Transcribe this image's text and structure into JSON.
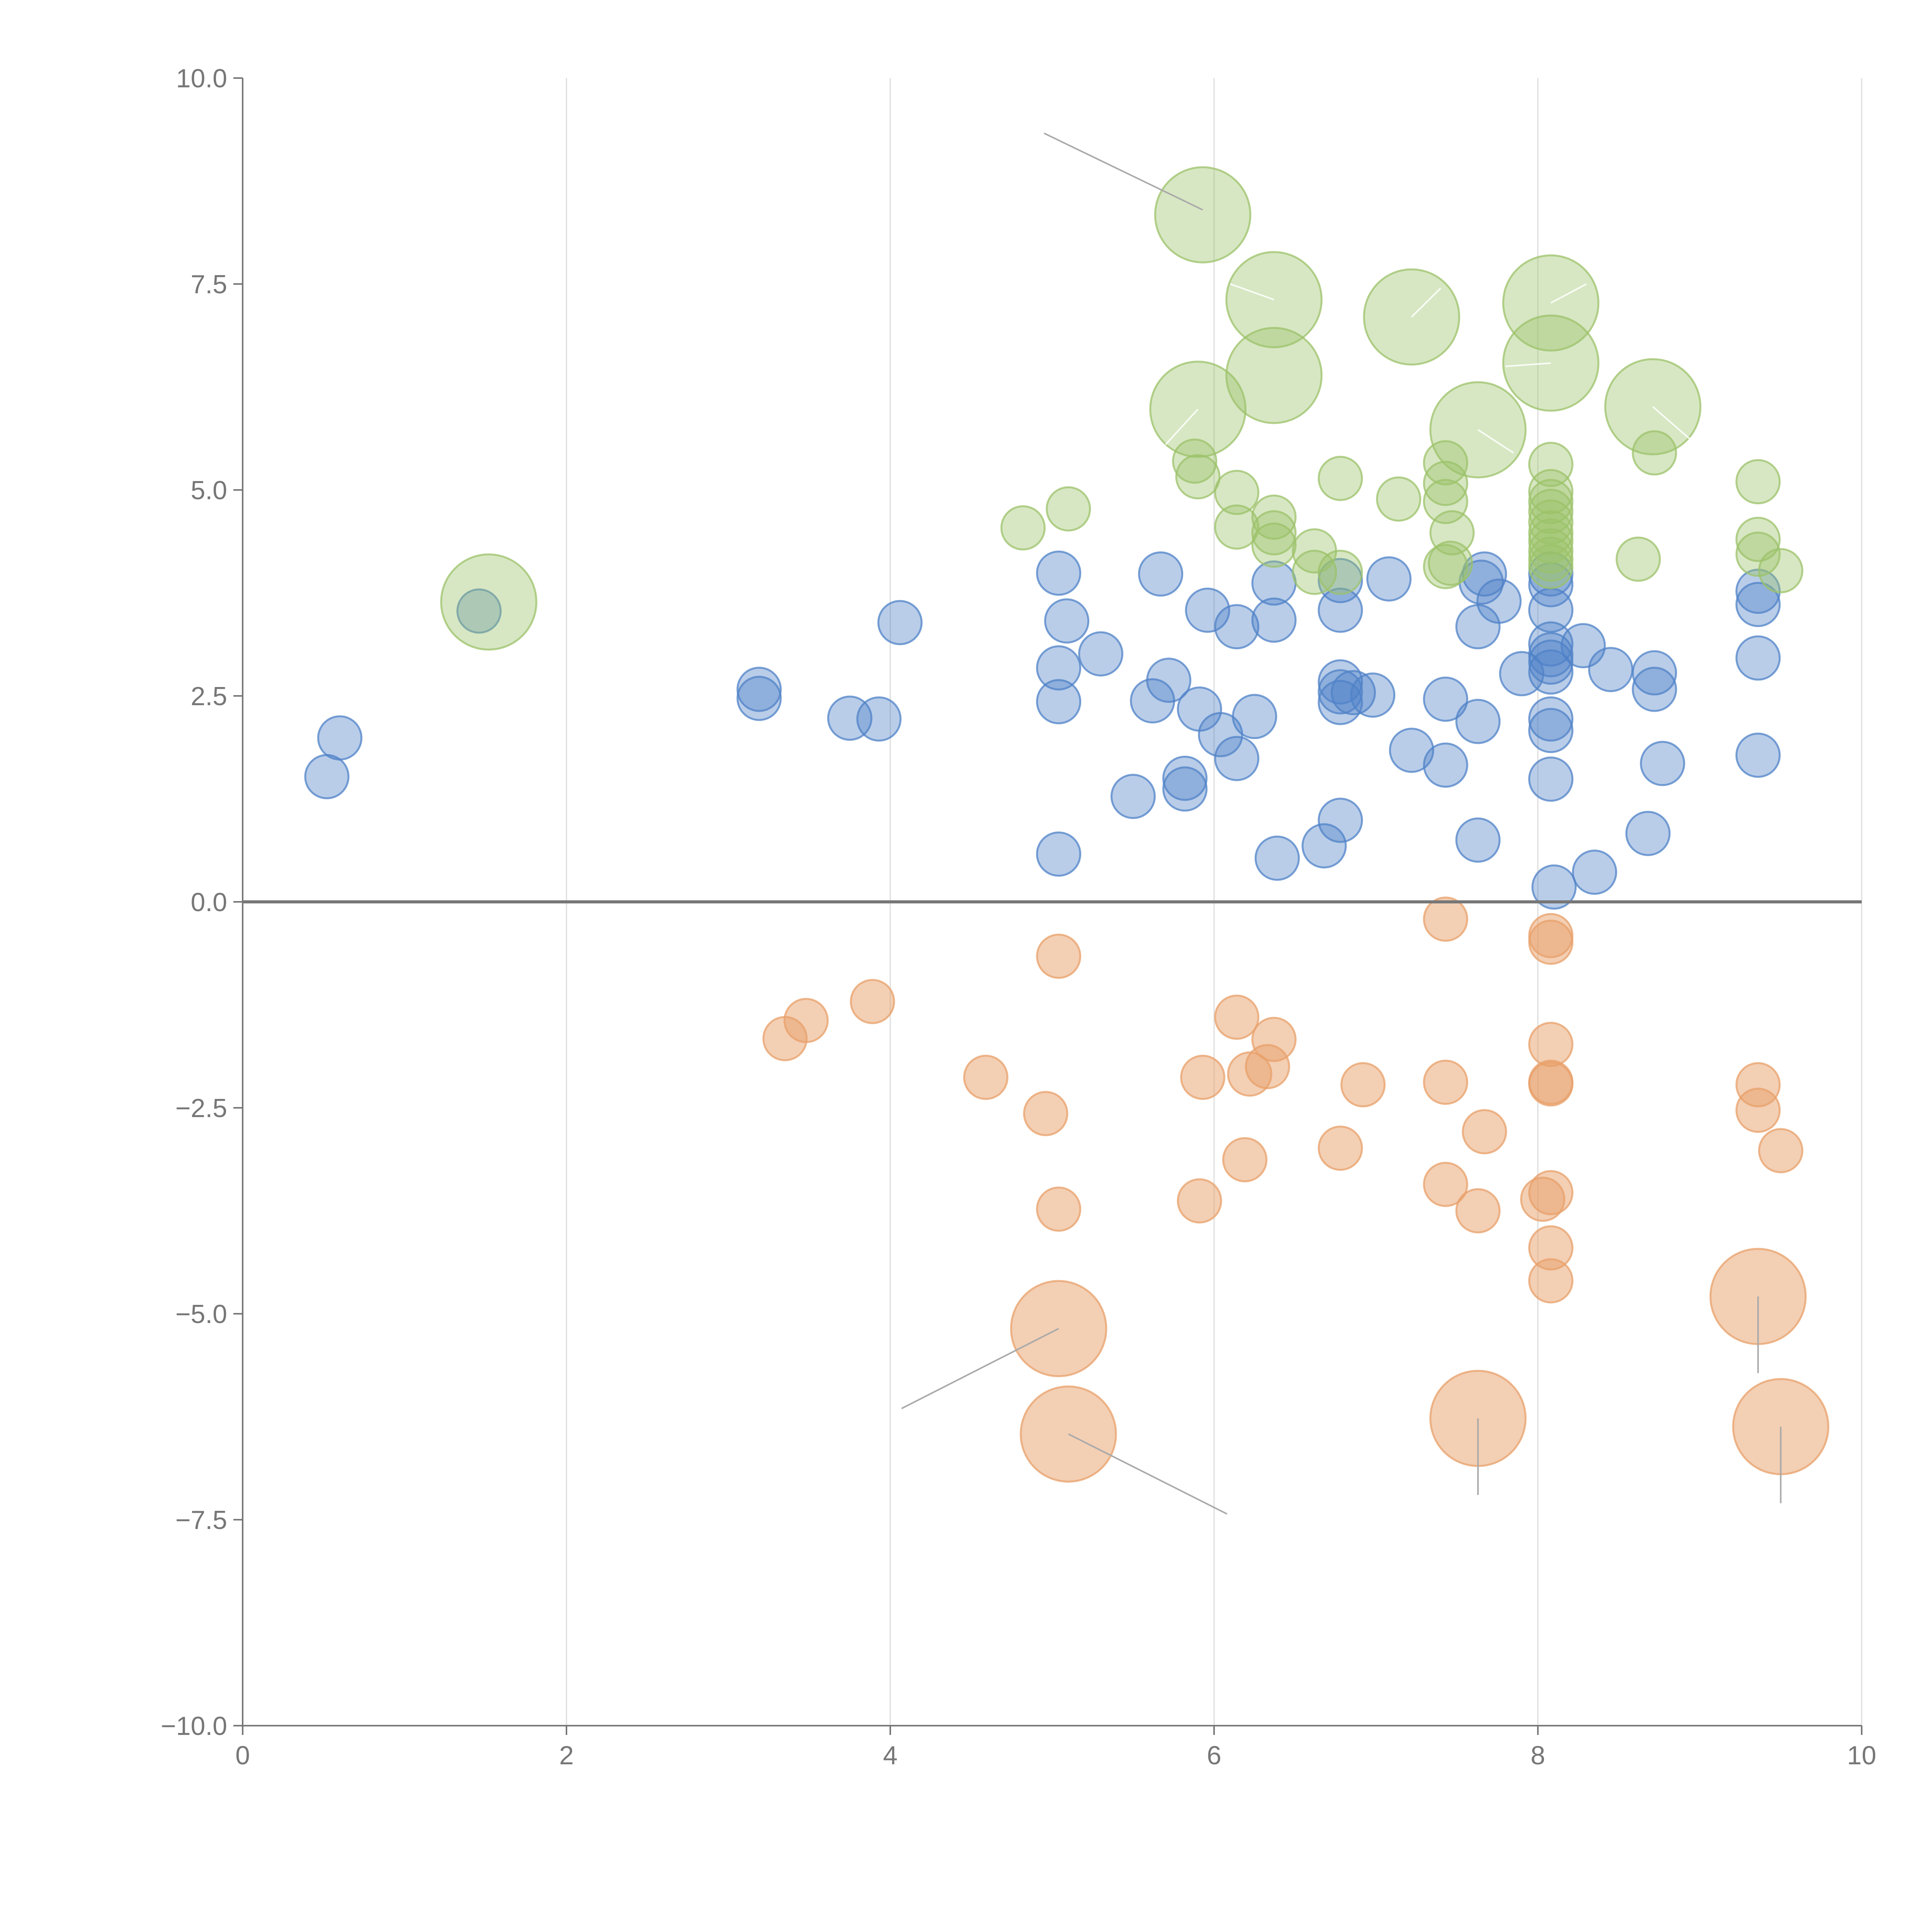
{
  "chart_data": {
    "type": "scatter",
    "title": "",
    "xlabel": "",
    "ylabel": "",
    "xlim": [
      0,
      10
    ],
    "ylim": [
      -10,
      10
    ],
    "grid": "vertical",
    "reference_line_y": 0,
    "x_ticks": [
      {
        "value": 0,
        "label": "0"
      },
      {
        "value": 2,
        "label": "2"
      },
      {
        "value": 4,
        "label": "4"
      },
      {
        "value": 6,
        "label": "6"
      },
      {
        "value": 8,
        "label": "8"
      },
      {
        "value": 10,
        "label": "10"
      }
    ],
    "y_ticks": [
      {
        "value": 10,
        "label": "10.0"
      },
      {
        "value": 7.5,
        "label": "7.5"
      },
      {
        "value": 5,
        "label": "5.0"
      },
      {
        "value": 2.5,
        "label": "2.5"
      },
      {
        "value": 0,
        "label": "0.0"
      },
      {
        "value": -2.5,
        "label": "−2.5"
      },
      {
        "value": -5,
        "label": "−5.0"
      },
      {
        "value": -7.5,
        "label": "−7.5"
      },
      {
        "value": -10,
        "label": "−10.0"
      }
    ],
    "series": [
      {
        "name": "blue",
        "color": "#4f81c7",
        "fill_opacity": 0.4,
        "size_unit": 1,
        "points": [
          [
            0.52,
            1.52
          ],
          [
            0.6,
            1.99
          ],
          [
            1.46,
            3.53
          ],
          [
            3.19,
            2.58
          ],
          [
            3.19,
            2.47
          ],
          [
            3.75,
            2.23
          ],
          [
            3.93,
            2.22
          ],
          [
            4.06,
            3.39
          ],
          [
            5.04,
            3.99
          ],
          [
            5.04,
            2.84
          ],
          [
            5.04,
            2.43
          ],
          [
            5.04,
            0.58
          ],
          [
            5.09,
            3.41
          ],
          [
            5.3,
            3.01
          ],
          [
            5.5,
            1.28
          ],
          [
            5.62,
            2.44
          ],
          [
            5.67,
            3.98
          ],
          [
            5.72,
            2.69
          ],
          [
            5.82,
            1.5
          ],
          [
            5.82,
            1.37
          ],
          [
            5.91,
            2.34
          ],
          [
            5.96,
            3.54
          ],
          [
            6.04,
            2.03
          ],
          [
            6.14,
            3.34
          ],
          [
            6.14,
            1.74
          ],
          [
            6.25,
            2.25
          ],
          [
            6.37,
            3.87
          ],
          [
            6.37,
            3.42
          ],
          [
            6.39,
            0.53
          ],
          [
            6.68,
            0.68
          ],
          [
            6.78,
            3.9
          ],
          [
            6.78,
            3.54
          ],
          [
            6.78,
            2.67
          ],
          [
            6.78,
            2.55
          ],
          [
            6.78,
            2.42
          ],
          [
            6.78,
            0.99
          ],
          [
            6.86,
            2.54
          ],
          [
            6.98,
            2.51
          ],
          [
            7.08,
            3.92
          ],
          [
            7.22,
            1.84
          ],
          [
            7.43,
            2.46
          ],
          [
            7.43,
            1.66
          ],
          [
            7.63,
            2.19
          ],
          [
            7.63,
            0.75
          ],
          [
            7.63,
            3.34
          ],
          [
            7.65,
            3.88
          ],
          [
            7.67,
            3.98
          ],
          [
            7.76,
            3.65
          ],
          [
            7.9,
            2.77
          ],
          [
            8.08,
            3.98
          ],
          [
            8.08,
            3.85
          ],
          [
            8.08,
            3.54
          ],
          [
            8.08,
            3.13
          ],
          [
            8.08,
            3.0
          ],
          [
            8.08,
            2.91
          ],
          [
            8.08,
            2.79
          ],
          [
            8.08,
            2.22
          ],
          [
            8.08,
            2.08
          ],
          [
            8.08,
            1.49
          ],
          [
            8.1,
            0.18
          ],
          [
            8.28,
            3.11
          ],
          [
            8.35,
            0.36
          ],
          [
            8.45,
            2.82
          ],
          [
            8.68,
            0.83
          ],
          [
            8.72,
            2.78
          ],
          [
            8.72,
            2.58
          ],
          [
            8.77,
            1.68
          ],
          [
            9.36,
            3.77
          ],
          [
            9.36,
            3.61
          ],
          [
            9.36,
            2.96
          ],
          [
            9.36,
            1.78
          ]
        ]
      },
      {
        "name": "green",
        "color": "#9cc26a",
        "fill_opacity": 0.4,
        "size_unit": 1,
        "points": [
          [
            1.52,
            3.64,
            2.2
          ],
          [
            4.82,
            4.54,
            1
          ],
          [
            5.1,
            4.77,
            1
          ],
          [
            5.93,
            8.34,
            2.2
          ],
          [
            5.9,
            5.98,
            2.2
          ],
          [
            5.88,
            5.35,
            1
          ],
          [
            5.9,
            5.16,
            1
          ],
          [
            6.14,
            4.97,
            1
          ],
          [
            6.14,
            4.55,
            1
          ],
          [
            6.37,
            7.31,
            2.2
          ],
          [
            6.37,
            6.39,
            2.2
          ],
          [
            6.37,
            4.67,
            1
          ],
          [
            6.37,
            4.48,
            1
          ],
          [
            6.37,
            4.33,
            1
          ],
          [
            6.62,
            4.26,
            1
          ],
          [
            6.62,
            4.0,
            1
          ],
          [
            6.78,
            5.14,
            1
          ],
          [
            6.78,
            4.0,
            1
          ],
          [
            7.14,
            4.89,
            1
          ],
          [
            7.22,
            7.1,
            2.2
          ],
          [
            7.43,
            5.33,
            1
          ],
          [
            7.43,
            5.08,
            1
          ],
          [
            7.43,
            4.86,
            1
          ],
          [
            7.43,
            4.07,
            1
          ],
          [
            7.46,
            4.11,
            1
          ],
          [
            7.47,
            4.48,
            1
          ],
          [
            7.63,
            5.73,
            2.2
          ],
          [
            8.08,
            7.27,
            2.2
          ],
          [
            8.08,
            6.54,
            2.2
          ],
          [
            8.08,
            5.31,
            1
          ],
          [
            8.08,
            4.98,
            1
          ],
          [
            8.08,
            4.86,
            1
          ],
          [
            8.08,
            4.74,
            1
          ],
          [
            8.08,
            4.61,
            1
          ],
          [
            8.08,
            4.48,
            1
          ],
          [
            8.08,
            4.38,
            1
          ],
          [
            8.08,
            4.26,
            1
          ],
          [
            8.08,
            4.16,
            1
          ],
          [
            8.08,
            4.07,
            1
          ],
          [
            8.62,
            4.16,
            1
          ],
          [
            8.71,
            6.01,
            2.2
          ],
          [
            8.72,
            5.45,
            1
          ],
          [
            9.36,
            5.1,
            1
          ],
          [
            9.36,
            4.4,
            1
          ],
          [
            9.36,
            4.22,
            1
          ],
          [
            9.5,
            4.02,
            1
          ]
        ]
      },
      {
        "name": "orange",
        "color": "#e8a06a",
        "fill_opacity": 0.5,
        "size_unit": 1,
        "points": [
          [
            3.35,
            -1.66,
            1
          ],
          [
            3.48,
            -1.44,
            1
          ],
          [
            3.89,
            -1.21,
            1
          ],
          [
            4.59,
            -2.13,
            1
          ],
          [
            4.96,
            -2.57,
            1
          ],
          [
            5.04,
            -0.66,
            1
          ],
          [
            5.04,
            -3.73,
            1
          ],
          [
            5.04,
            -5.18,
            2.2
          ],
          [
            5.1,
            -6.46,
            2.2
          ],
          [
            5.91,
            -3.63,
            1
          ],
          [
            5.93,
            -2.13,
            1
          ],
          [
            6.14,
            -1.4,
            1
          ],
          [
            6.19,
            -3.13,
            1
          ],
          [
            6.22,
            -2.09,
            1
          ],
          [
            6.33,
            -2.0,
            1
          ],
          [
            6.37,
            -1.67,
            1
          ],
          [
            6.78,
            -2.99,
            1
          ],
          [
            6.92,
            -2.22,
            1
          ],
          [
            7.43,
            -0.21,
            1
          ],
          [
            7.43,
            -2.19,
            1
          ],
          [
            7.43,
            -3.43,
            1
          ],
          [
            7.63,
            -3.75,
            1
          ],
          [
            7.63,
            -6.27,
            2.2
          ],
          [
            7.67,
            -2.79,
            1
          ],
          [
            8.03,
            -3.61,
            1
          ],
          [
            8.08,
            -0.41,
            1
          ],
          [
            8.08,
            -0.49,
            1
          ],
          [
            8.08,
            -1.73,
            1
          ],
          [
            8.08,
            -2.19,
            1
          ],
          [
            8.08,
            -2.21,
            1
          ],
          [
            8.08,
            -3.53,
            1
          ],
          [
            8.08,
            -4.2,
            1
          ],
          [
            8.08,
            -4.6,
            1
          ],
          [
            9.36,
            -2.22,
            1
          ],
          [
            9.36,
            -2.53,
            1
          ],
          [
            9.36,
            -4.79,
            2.2
          ],
          [
            9.5,
            -3.02,
            1
          ],
          [
            9.5,
            -6.37,
            2.2
          ]
        ]
      }
    ],
    "leader_lines": [
      {
        "from": [
          5.93,
          8.4
        ],
        "to": [
          4.95,
          9.33
        ],
        "tone": "gray"
      },
      {
        "from": [
          5.04,
          -5.18
        ],
        "to": [
          4.07,
          -6.15
        ],
        "tone": "gray"
      },
      {
        "from": [
          5.1,
          -6.46
        ],
        "to": [
          6.08,
          -7.43
        ],
        "tone": "gray"
      },
      {
        "from": [
          7.63,
          -6.27
        ],
        "to": [
          7.63,
          -7.2
        ],
        "tone": "gray"
      },
      {
        "from": [
          9.36,
          -4.79
        ],
        "to": [
          9.36,
          -5.72
        ],
        "tone": "gray"
      },
      {
        "from": [
          9.5,
          -6.37
        ],
        "to": [
          9.5,
          -7.3
        ],
        "tone": "gray"
      },
      {
        "from": [
          6.37,
          7.31
        ],
        "to": [
          6.1,
          7.5
        ],
        "tone": "light"
      },
      {
        "from": [
          7.22,
          7.1
        ],
        "to": [
          7.4,
          7.45
        ],
        "tone": "light"
      },
      {
        "from": [
          8.08,
          7.27
        ],
        "to": [
          8.3,
          7.5
        ],
        "tone": "light"
      },
      {
        "from": [
          8.08,
          6.54
        ],
        "to": [
          7.8,
          6.5
        ],
        "tone": "light"
      },
      {
        "from": [
          5.9,
          5.98
        ],
        "to": [
          5.7,
          5.55
        ],
        "tone": "light"
      },
      {
        "from": [
          7.63,
          5.73
        ],
        "to": [
          7.85,
          5.45
        ],
        "tone": "light"
      },
      {
        "from": [
          8.71,
          6.01
        ],
        "to": [
          8.95,
          5.6
        ],
        "tone": "light"
      }
    ]
  }
}
